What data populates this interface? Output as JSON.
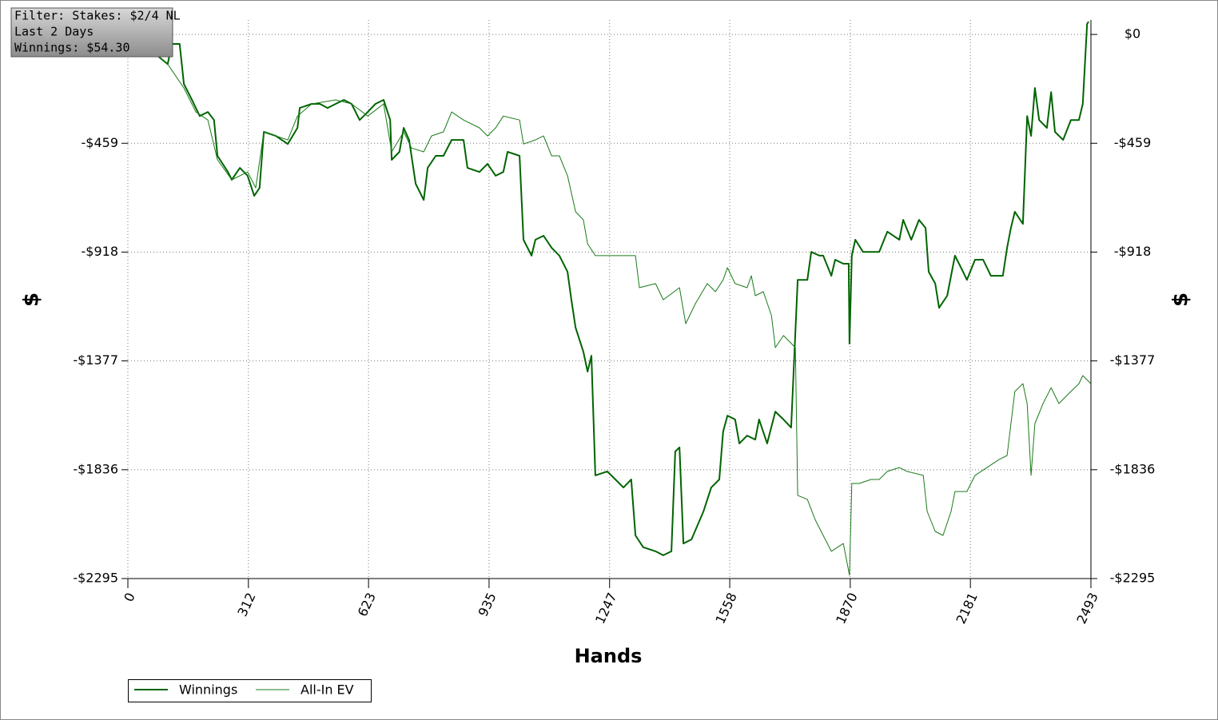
{
  "filter": {
    "lines": [
      "Filter: Stakes: $2/4 NL",
      "Last  2 Days",
      "Winnings: $54.30"
    ]
  },
  "chart_data": {
    "type": "line",
    "xlabel": "Hands",
    "ylabel": "$",
    "y2label": "$",
    "xlim": [
      0,
      2493
    ],
    "ylim": [
      -2295,
      61
    ],
    "xticks": [
      0,
      312,
      623,
      935,
      1247,
      1558,
      1870,
      2181,
      2493
    ],
    "yticks": [
      {
        "value": 0,
        "label": "$0"
      },
      {
        "value": -459,
        "label": "-$459"
      },
      {
        "value": -918,
        "label": "-$918"
      },
      {
        "value": -1377,
        "label": "-$1377"
      },
      {
        "value": -1836,
        "label": "-$1836"
      },
      {
        "value": -2295,
        "label": "-$2295"
      }
    ],
    "grid": true,
    "legend": "bottom-left",
    "series": [
      {
        "name": "Winnings",
        "color": "#006400",
        "width": 2,
        "x": [
          0,
          52,
          103,
          114,
          134,
          145,
          166,
          186,
          207,
          223,
          232,
          259,
          269,
          290,
          310,
          327,
          341,
          352,
          383,
          414,
          439,
          445,
          476,
          497,
          517,
          538,
          559,
          579,
          600,
          621,
          641,
          662,
          679,
          683,
          703,
          714,
          728,
          745,
          766,
          776,
          797,
          817,
          838,
          869,
          879,
          910,
          931,
          952,
          972,
          983,
          1014,
          1024,
          1045,
          1055,
          1076,
          1097,
          1117,
          1138,
          1148,
          1159,
          1179,
          1190,
          1200,
          1210,
          1241,
          1262,
          1283,
          1303,
          1314,
          1334,
          1366,
          1386,
          1407,
          1417,
          1428,
          1438,
          1459,
          1490,
          1510,
          1531,
          1541,
          1552,
          1572,
          1583,
          1603,
          1624,
          1634,
          1655,
          1676,
          1697,
          1717,
          1734,
          1759,
          1769,
          1790,
          1800,
          1821,
          1831,
          1852,
          1866,
          1868,
          1874,
          1883,
          1903,
          1945,
          1966,
          1997,
          2007,
          2028,
          2048,
          2065,
          2073,
          2090,
          2100,
          2121,
          2131,
          2141,
          2162,
          2172,
          2193,
          2214,
          2234,
          2265,
          2276,
          2286,
          2296,
          2317,
          2328,
          2338,
          2348,
          2359,
          2379,
          2390,
          2400,
          2421,
          2441,
          2462,
          2472,
          2483,
          2487
        ],
        "values": [
          -7,
          -57,
          -125,
          -40,
          -40,
          -209,
          -276,
          -344,
          -327,
          -361,
          -512,
          -580,
          -613,
          -563,
          -596,
          -681,
          -647,
          -411,
          -428,
          -462,
          -394,
          -310,
          -293,
          -293,
          -310,
          -293,
          -276,
          -293,
          -361,
          -327,
          -293,
          -276,
          -361,
          -529,
          -495,
          -394,
          -445,
          -630,
          -698,
          -563,
          -512,
          -512,
          -445,
          -445,
          -563,
          -580,
          -546,
          -596,
          -580,
          -495,
          -512,
          -866,
          -933,
          -866,
          -849,
          -900,
          -933,
          -1001,
          -1119,
          -1237,
          -1338,
          -1422,
          -1355,
          -1860,
          -1843,
          -1877,
          -1911,
          -1877,
          -2113,
          -2163,
          -2180,
          -2197,
          -2180,
          -1759,
          -1742,
          -2147,
          -2130,
          -2012,
          -1911,
          -1877,
          -1675,
          -1608,
          -1624,
          -1725,
          -1692,
          -1709,
          -1624,
          -1725,
          -1591,
          -1624,
          -1658,
          -1035,
          -1035,
          -917,
          -933,
          -933,
          -1018,
          -950,
          -967,
          -967,
          -1304,
          -933,
          -866,
          -917,
          -917,
          -832,
          -866,
          -782,
          -866,
          -782,
          -816,
          -1001,
          -1051,
          -1153,
          -1102,
          -1018,
          -933,
          -1001,
          -1035,
          -950,
          -950,
          -1018,
          -1018,
          -900,
          -816,
          -748,
          -799,
          -344,
          -428,
          -226,
          -361,
          -394,
          -243,
          -411,
          -445,
          -361,
          -361,
          -293,
          44,
          54
        ]
      },
      {
        "name": "All-In EV",
        "color": "#1a7a1a",
        "width": 1,
        "x": [
          0,
          52,
          103,
          145,
          176,
          207,
          232,
          269,
          310,
          331,
          352,
          414,
          439,
          476,
          538,
          579,
          621,
          662,
          683,
          714,
          734,
          766,
          786,
          817,
          838,
          869,
          910,
          931,
          952,
          972,
          1014,
          1024,
          1055,
          1076,
          1097,
          1117,
          1138,
          1159,
          1179,
          1190,
          1210,
          1241,
          1283,
          1314,
          1324,
          1366,
          1386,
          1428,
          1444,
          1469,
          1500,
          1521,
          1541,
          1552,
          1572,
          1603,
          1614,
          1624,
          1645,
          1666,
          1676,
          1697,
          1728,
          1734,
          1759,
          1779,
          1800,
          1821,
          1852,
          1868,
          1874,
          1893,
          1924,
          1945,
          1966,
          1997,
          2017,
          2059,
          2069,
          2090,
          2110,
          2131,
          2141,
          2172,
          2193,
          2224,
          2255,
          2276,
          2296,
          2317,
          2328,
          2338,
          2348,
          2369,
          2390,
          2410,
          2441,
          2462,
          2472,
          2493
        ],
        "values": [
          -7,
          -57,
          -125,
          -226,
          -327,
          -361,
          -529,
          -613,
          -580,
          -647,
          -411,
          -445,
          -344,
          -293,
          -276,
          -293,
          -344,
          -293,
          -495,
          -411,
          -479,
          -495,
          -428,
          -411,
          -327,
          -361,
          -394,
          -428,
          -394,
          -344,
          -361,
          -462,
          -445,
          -428,
          -512,
          -512,
          -596,
          -748,
          -782,
          -883,
          -933,
          -933,
          -933,
          -933,
          -1068,
          -1051,
          -1119,
          -1068,
          -1220,
          -1136,
          -1051,
          -1085,
          -1035,
          -984,
          -1051,
          -1068,
          -1018,
          -1102,
          -1085,
          -1186,
          -1321,
          -1270,
          -1321,
          -1944,
          -1961,
          -2046,
          -2113,
          -2180,
          -2147,
          -2281,
          -1894,
          -1894,
          -1877,
          -1877,
          -1843,
          -1827,
          -1843,
          -1860,
          -2012,
          -2096,
          -2113,
          -2012,
          -1928,
          -1928,
          -1860,
          -1827,
          -1793,
          -1776,
          -1506,
          -1473,
          -1557,
          -1860,
          -1641,
          -1557,
          -1490,
          -1557,
          -1506,
          -1473,
          -1439,
          -1473
        ]
      }
    ]
  }
}
